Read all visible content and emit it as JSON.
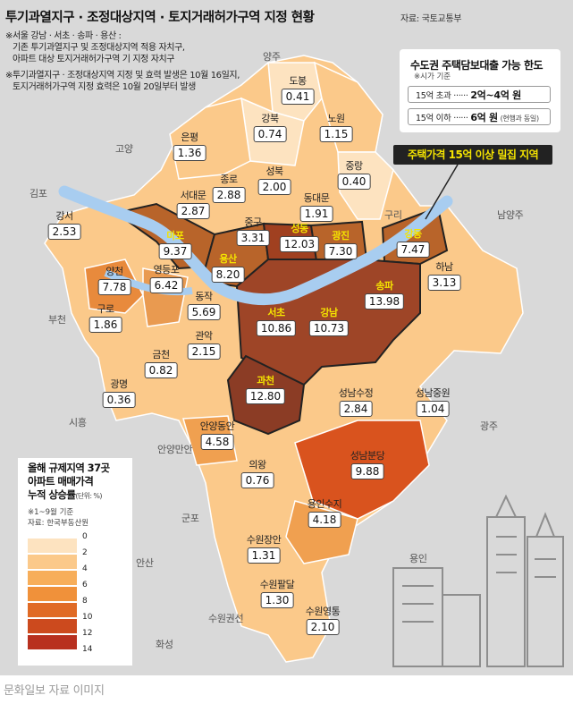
{
  "title": "투기과열지구 · 조정대상지역 · 토지거래허가구역 지정 현황",
  "source": "자료: 국토교통부",
  "notes": [
    "※서울 강남 · 서초 · 송파 · 용산 :",
    "기존 투기과열지구 및 조정대상지역 적용 자치구,",
    "아파트 대상 토지거래허가구역 기 지정 자치구",
    "※투기과열지구 · 조정대상지역 지정 및 효력 발생은 10월 16일지,",
    "토지거래허가구역 지정 효력은 10월 20일부터 발생"
  ],
  "loan_limit": {
    "title": "수도권 주택담보대출 가능 한도",
    "subtitle": "※시가 기준",
    "rows": [
      {
        "condition": "15억 초과 ······",
        "amount": "2억~4억 원",
        "note": ""
      },
      {
        "condition": "15억 이하 ······",
        "amount": "6억 원",
        "note": "(현행과 동일)"
      }
    ]
  },
  "callout": "주택가격 15억 이상 밀집 지역",
  "districts": [
    {
      "name": "도봉",
      "value": "0.41",
      "rate": 0.41,
      "highlight": false
    },
    {
      "name": "강북",
      "value": "0.74",
      "rate": 0.74,
      "highlight": false
    },
    {
      "name": "노원",
      "value": "1.15",
      "rate": 1.15,
      "highlight": false
    },
    {
      "name": "은평",
      "value": "1.36",
      "rate": 1.36,
      "highlight": false
    },
    {
      "name": "성북",
      "value": "2.00",
      "rate": 2.0,
      "highlight": false
    },
    {
      "name": "중랑",
      "value": "0.40",
      "rate": 0.4,
      "highlight": false
    },
    {
      "name": "종로",
      "value": "2.88",
      "rate": 2.88,
      "highlight": false
    },
    {
      "name": "서대문",
      "value": "2.87",
      "rate": 2.87,
      "highlight": false
    },
    {
      "name": "동대문",
      "value": "1.91",
      "rate": 1.91,
      "highlight": false
    },
    {
      "name": "강서",
      "value": "2.53",
      "rate": 2.53,
      "highlight": false
    },
    {
      "name": "마포",
      "value": "9.37",
      "rate": 9.37,
      "highlight": true
    },
    {
      "name": "중구",
      "value": "3.31",
      "rate": 3.31,
      "highlight": false
    },
    {
      "name": "성동",
      "value": "12.03",
      "rate": 12.03,
      "highlight": true
    },
    {
      "name": "광진",
      "value": "7.30",
      "rate": 7.3,
      "highlight": true
    },
    {
      "name": "강동",
      "value": "7.47",
      "rate": 7.47,
      "highlight": true
    },
    {
      "name": "용산",
      "value": "8.20",
      "rate": 8.2,
      "highlight": true
    },
    {
      "name": "양천",
      "value": "7.78",
      "rate": 7.78,
      "highlight": false
    },
    {
      "name": "영등포",
      "value": "6.42",
      "rate": 6.42,
      "highlight": false
    },
    {
      "name": "동작",
      "value": "5.69",
      "rate": 5.69,
      "highlight": false
    },
    {
      "name": "송파",
      "value": "13.98",
      "rate": 13.98,
      "highlight": true
    },
    {
      "name": "하남",
      "value": "3.13",
      "rate": 3.13,
      "highlight": false
    },
    {
      "name": "구로",
      "value": "1.86",
      "rate": 1.86,
      "highlight": false
    },
    {
      "name": "서초",
      "value": "10.86",
      "rate": 10.86,
      "highlight": true
    },
    {
      "name": "강남",
      "value": "10.73",
      "rate": 10.73,
      "highlight": true
    },
    {
      "name": "관악",
      "value": "2.15",
      "rate": 2.15,
      "highlight": false
    },
    {
      "name": "금천",
      "value": "0.82",
      "rate": 0.82,
      "highlight": false
    },
    {
      "name": "광명",
      "value": "0.36",
      "rate": 0.36,
      "highlight": false
    },
    {
      "name": "과천",
      "value": "12.80",
      "rate": 12.8,
      "highlight": true
    },
    {
      "name": "성남수정",
      "value": "2.84",
      "rate": 2.84,
      "highlight": false
    },
    {
      "name": "성남중원",
      "value": "1.04",
      "rate": 1.04,
      "highlight": false
    },
    {
      "name": "안양동안",
      "value": "4.58",
      "rate": 4.58,
      "highlight": false
    },
    {
      "name": "성남분당",
      "value": "9.88",
      "rate": 9.88,
      "highlight": false
    },
    {
      "name": "의왕",
      "value": "0.76",
      "rate": 0.76,
      "highlight": false
    },
    {
      "name": "용인수지",
      "value": "4.18",
      "rate": 4.18,
      "highlight": false
    },
    {
      "name": "수원장안",
      "value": "1.31",
      "rate": 1.31,
      "highlight": false
    },
    {
      "name": "수원팔달",
      "value": "1.30",
      "rate": 1.3,
      "highlight": false
    },
    {
      "name": "수원영통",
      "value": "2.10",
      "rate": 2.1,
      "highlight": false
    }
  ],
  "background_regions": [
    "양주",
    "고양",
    "김포",
    "구리",
    "남양주",
    "부천",
    "시흥",
    "광주",
    "안양만안",
    "군포",
    "안산",
    "용인",
    "수원권선",
    "화성"
  ],
  "legend": {
    "title": [
      "올해 규제지역 37곳",
      "아파트 매매가격",
      "누적 상승률"
    ],
    "unit": "(단위: %)",
    "period": "※1~9월 기준",
    "source": "자료: 한국부동산원",
    "ticks": [
      "0",
      "2",
      "4",
      "6",
      "8",
      "10",
      "12",
      "14"
    ],
    "colors": [
      "#fde3c0",
      "#fbc98a",
      "#f7ae5a",
      "#f0913a",
      "#e06a25",
      "#cc4a1e",
      "#b8301f"
    ]
  },
  "colors": {
    "river": "#a8cdf0",
    "highlight_text": "#f5e400",
    "callout_bg": "#222222"
  },
  "caption": "문화일보 자료 이미지"
}
